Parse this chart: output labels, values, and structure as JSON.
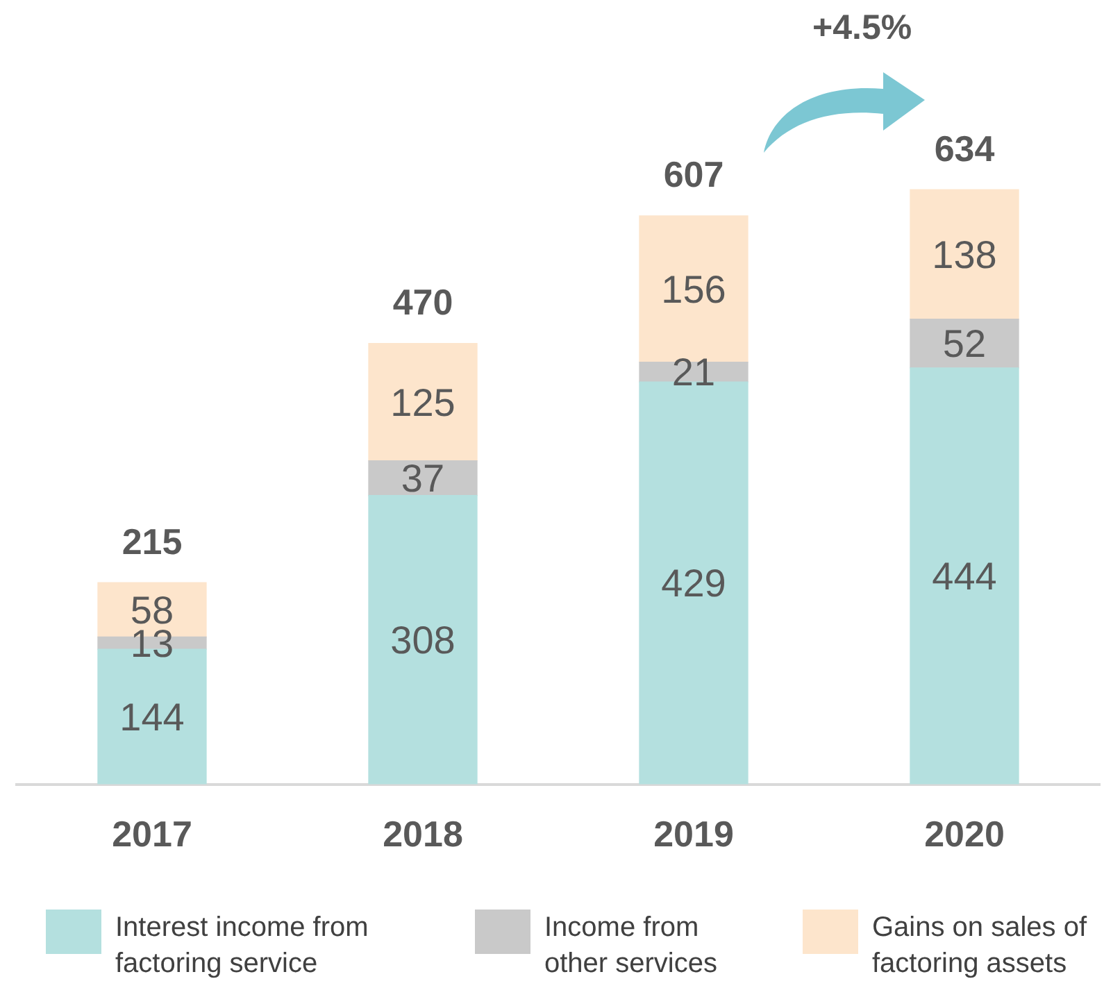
{
  "chart_data": {
    "type": "bar",
    "stacked": true,
    "categories": [
      "2017",
      "2018",
      "2019",
      "2020"
    ],
    "series": [
      {
        "name": "Interest income from factoring service",
        "color": "#b4e0df",
        "values": [
          144,
          308,
          429,
          444
        ]
      },
      {
        "name": "Income from other services",
        "color": "#c9c9c9",
        "values": [
          13,
          37,
          21,
          52
        ]
      },
      {
        "name": "Gains on sales of factoring assets",
        "color": "#fde5cc",
        "values": [
          58,
          125,
          156,
          138
        ]
      }
    ],
    "data_labels": true,
    "totals": [
      "215",
      "470",
      "607",
      "634"
    ],
    "annotations": [
      "+4.5%"
    ],
    "legend": "bottom",
    "grid": false,
    "tick_labels": "x"
  }
}
